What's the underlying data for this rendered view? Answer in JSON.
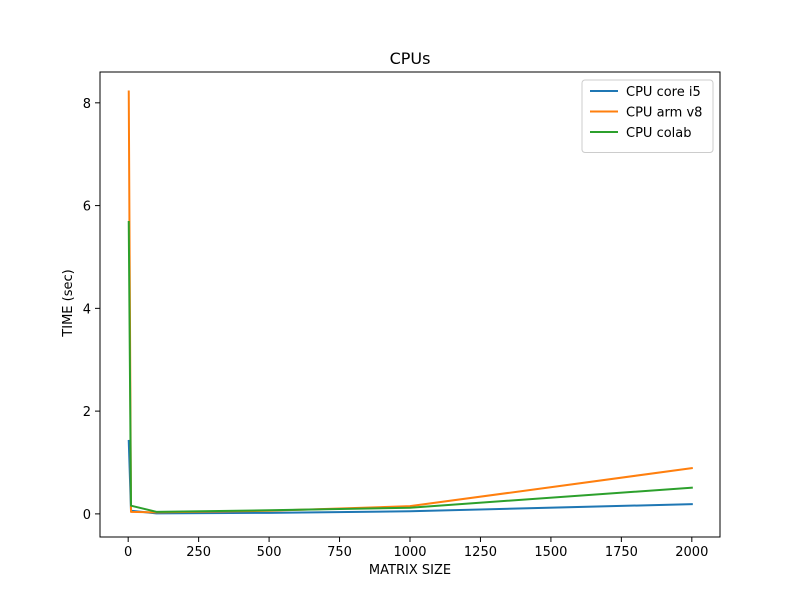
{
  "chart_data": {
    "type": "line",
    "title": "CPUs",
    "xlabel": "MATRIX SIZE",
    "ylabel": "TIME (sec)",
    "xlim": [
      -100,
      2100
    ],
    "ylim": [
      -0.45,
      8.6
    ],
    "xticks": [
      0,
      250,
      500,
      750,
      1000,
      1250,
      1500,
      1750,
      2000
    ],
    "yticks": [
      0,
      2,
      4,
      6,
      8
    ],
    "grid": false,
    "legend_position": "upper-right",
    "series": [
      {
        "name": "CPU core i5",
        "color": "#1f77b4",
        "points": [
          [
            2,
            1.42
          ],
          [
            10,
            0.06
          ],
          [
            100,
            0.01
          ],
          [
            500,
            0.02
          ],
          [
            1000,
            0.05
          ],
          [
            2000,
            0.19
          ]
        ]
      },
      {
        "name": "CPU arm v8",
        "color": "#ff7f0e",
        "points": [
          [
            2,
            8.22
          ],
          [
            10,
            0.04
          ],
          [
            100,
            0.03
          ],
          [
            500,
            0.06
          ],
          [
            1000,
            0.15
          ],
          [
            2000,
            0.89
          ]
        ]
      },
      {
        "name": "CPU colab",
        "color": "#2ca02c",
        "points": [
          [
            2,
            5.68
          ],
          [
            10,
            0.16
          ],
          [
            100,
            0.04
          ],
          [
            500,
            0.07
          ],
          [
            1000,
            0.12
          ],
          [
            2000,
            0.51
          ]
        ]
      }
    ]
  }
}
